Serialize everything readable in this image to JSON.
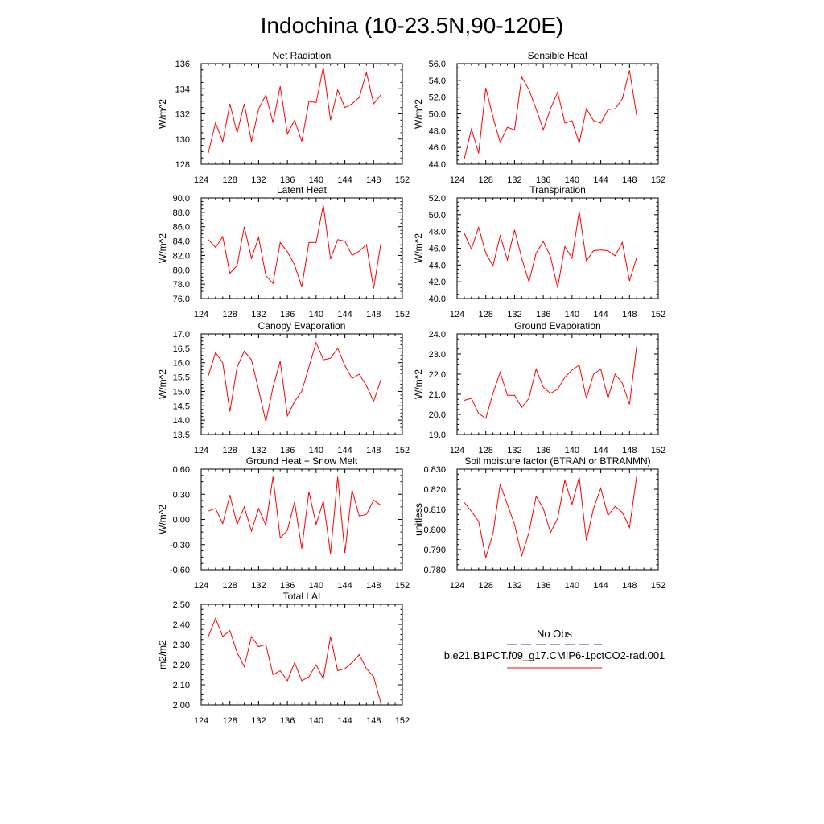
{
  "title": "Indochina (10-23.5N,90-120E)",
  "colors": {
    "model": "#ff0000",
    "obs": "#3a3ab0",
    "axis": "#000000"
  },
  "legend": {
    "obs_label": "No Obs",
    "model_label": "b.e21.B1PCT.f09_g17.CMIP6-1pctCO2-rad.001"
  },
  "chart_data": [
    {
      "type": "line",
      "title": "Net Radiation",
      "ylabel": "W/m^2",
      "xlim": [
        124,
        152
      ],
      "xticks": [
        124,
        128,
        132,
        136,
        140,
        144,
        148,
        152
      ],
      "ylim": [
        128,
        136
      ],
      "yticks": [
        128,
        130,
        132,
        134,
        136
      ],
      "ydecimals": 0,
      "x": [
        125,
        126,
        127,
        128,
        129,
        130,
        131,
        132,
        133,
        134,
        135,
        136,
        137,
        138,
        139,
        140,
        141,
        142,
        143,
        144,
        145,
        146,
        147,
        148,
        149
      ],
      "series": [
        {
          "values": [
            128.9,
            131.3,
            129.8,
            132.8,
            130.5,
            132.8,
            129.8,
            132.4,
            133.5,
            131.3,
            134.2,
            130.4,
            131.5,
            129.8,
            133.0,
            132.9,
            135.7,
            131.5,
            133.9,
            132.5,
            132.8,
            133.3,
            135.3,
            132.8,
            133.5
          ]
        }
      ]
    },
    {
      "type": "line",
      "title": "Sensible Heat",
      "ylabel": "W/m^2",
      "xlim": [
        124,
        152
      ],
      "xticks": [
        124,
        128,
        132,
        136,
        140,
        144,
        148,
        152
      ],
      "ylim": [
        44,
        56
      ],
      "yticks": [
        44,
        46,
        48,
        50,
        52,
        54,
        56
      ],
      "ydecimals": 1,
      "x": [
        125,
        126,
        127,
        128,
        129,
        130,
        131,
        132,
        133,
        134,
        135,
        136,
        137,
        138,
        139,
        140,
        141,
        142,
        143,
        144,
        145,
        146,
        147,
        148,
        149
      ],
      "series": [
        {
          "values": [
            44.6,
            48.2,
            45.3,
            53.1,
            49.6,
            46.6,
            48.4,
            48.1,
            54.4,
            52.9,
            50.6,
            48.1,
            50.6,
            52.6,
            48.9,
            49.2,
            46.5,
            50.6,
            49.2,
            48.9,
            50.5,
            50.6,
            51.8,
            55.2,
            49.8
          ]
        }
      ]
    },
    {
      "type": "line",
      "title": "Latent Heat",
      "ylabel": "W/m^2",
      "xlim": [
        124,
        152
      ],
      "xticks": [
        124,
        128,
        132,
        136,
        140,
        144,
        148,
        152
      ],
      "ylim": [
        76,
        90
      ],
      "yticks": [
        76,
        78,
        80,
        82,
        84,
        86,
        88,
        90
      ],
      "ydecimals": 1,
      "x": [
        125,
        126,
        127,
        128,
        129,
        130,
        131,
        132,
        133,
        134,
        135,
        136,
        137,
        138,
        139,
        140,
        141,
        142,
        143,
        144,
        145,
        146,
        147,
        148,
        149
      ],
      "series": [
        {
          "values": [
            84.2,
            83.1,
            84.6,
            79.5,
            80.6,
            86.0,
            81.6,
            84.5,
            79.2,
            78.1,
            83.8,
            82.5,
            80.7,
            77.6,
            83.8,
            83.8,
            89.0,
            81.5,
            84.2,
            84.0,
            82.0,
            82.6,
            83.5,
            77.4,
            83.6
          ]
        }
      ]
    },
    {
      "type": "line",
      "title": "Transpiration",
      "ylabel": "W/m^2",
      "xlim": [
        124,
        152
      ],
      "xticks": [
        124,
        128,
        132,
        136,
        140,
        144,
        148,
        152
      ],
      "ylim": [
        40,
        52
      ],
      "yticks": [
        40,
        42,
        44,
        46,
        48,
        50,
        52
      ],
      "ydecimals": 1,
      "x": [
        125,
        126,
        127,
        128,
        129,
        130,
        131,
        132,
        133,
        134,
        135,
        136,
        137,
        138,
        139,
        140,
        141,
        142,
        143,
        144,
        145,
        146,
        147,
        148,
        149
      ],
      "series": [
        {
          "values": [
            47.8,
            45.9,
            48.5,
            45.4,
            43.9,
            47.5,
            44.6,
            48.2,
            44.8,
            42.0,
            45.4,
            46.8,
            45.0,
            41.3,
            46.2,
            44.8,
            50.4,
            44.5,
            45.7,
            45.8,
            45.7,
            45.1,
            46.7,
            42.1,
            44.9
          ]
        }
      ]
    },
    {
      "type": "line",
      "title": "Canopy Evaporation",
      "ylabel": "W/m^2",
      "xlim": [
        124,
        152
      ],
      "xticks": [
        124,
        128,
        132,
        136,
        140,
        144,
        148,
        152
      ],
      "ylim": [
        13.5,
        17.0
      ],
      "yticks": [
        13.5,
        14.0,
        14.5,
        15.0,
        15.5,
        16.0,
        16.5,
        17.0
      ],
      "ydecimals": 1,
      "x": [
        125,
        126,
        127,
        128,
        129,
        130,
        131,
        132,
        133,
        134,
        135,
        136,
        137,
        138,
        139,
        140,
        141,
        142,
        143,
        144,
        145,
        146,
        147,
        148,
        149
      ],
      "series": [
        {
          "values": [
            15.55,
            16.35,
            16.0,
            14.3,
            15.85,
            16.4,
            16.1,
            15.05,
            13.95,
            15.15,
            16.05,
            14.15,
            14.65,
            15.0,
            15.85,
            16.7,
            16.1,
            16.15,
            16.5,
            15.9,
            15.45,
            15.6,
            15.2,
            14.65,
            15.4
          ]
        }
      ]
    },
    {
      "type": "line",
      "title": "Ground Evaporation",
      "ylabel": "W/m^2",
      "xlim": [
        124,
        152
      ],
      "xticks": [
        124,
        128,
        132,
        136,
        140,
        144,
        148,
        152
      ],
      "ylim": [
        19,
        24
      ],
      "yticks": [
        19,
        20,
        21,
        22,
        23,
        24
      ],
      "ydecimals": 1,
      "x": [
        125,
        126,
        127,
        128,
        129,
        130,
        131,
        132,
        133,
        134,
        135,
        136,
        137,
        138,
        139,
        140,
        141,
        142,
        143,
        144,
        145,
        146,
        147,
        148,
        149
      ],
      "series": [
        {
          "values": [
            20.7,
            20.8,
            20.05,
            19.8,
            21.05,
            22.1,
            20.95,
            20.95,
            20.35,
            20.8,
            22.25,
            21.35,
            21.05,
            21.25,
            21.85,
            22.2,
            22.45,
            20.8,
            22.0,
            22.25,
            20.8,
            22.0,
            21.55,
            20.5,
            23.4
          ]
        }
      ]
    },
    {
      "type": "line",
      "title": "Ground Heat + Snow Melt",
      "ylabel": "W/m^2",
      "xlim": [
        124,
        152
      ],
      "xticks": [
        124,
        128,
        132,
        136,
        140,
        144,
        148,
        152
      ],
      "ylim": [
        -0.6,
        0.6
      ],
      "yticks": [
        -0.6,
        -0.3,
        0.0,
        0.3,
        0.6
      ],
      "ydecimals": 2,
      "x": [
        125,
        126,
        127,
        128,
        129,
        130,
        131,
        132,
        133,
        134,
        135,
        136,
        137,
        138,
        139,
        140,
        141,
        142,
        143,
        144,
        145,
        146,
        147,
        148,
        149
      ],
      "series": [
        {
          "values": [
            0.1,
            0.13,
            -0.05,
            0.29,
            -0.06,
            0.15,
            -0.14,
            0.13,
            -0.07,
            0.51,
            -0.22,
            -0.13,
            0.21,
            -0.35,
            0.33,
            -0.06,
            0.22,
            -0.41,
            0.51,
            -0.4,
            0.35,
            0.04,
            0.06,
            0.23,
            0.17
          ]
        }
      ]
    },
    {
      "type": "line",
      "title": "Soil moisture factor (BTRAN or BTRANMN)",
      "ylabel": "unitless",
      "xlim": [
        124,
        152
      ],
      "xticks": [
        124,
        128,
        132,
        136,
        140,
        144,
        148,
        152
      ],
      "ylim": [
        0.78,
        0.83
      ],
      "yticks": [
        0.78,
        0.79,
        0.8,
        0.81,
        0.82,
        0.83
      ],
      "ydecimals": 3,
      "x": [
        125,
        126,
        127,
        128,
        129,
        130,
        131,
        132,
        133,
        134,
        135,
        136,
        137,
        138,
        139,
        140,
        141,
        142,
        143,
        144,
        145,
        146,
        147,
        148,
        149
      ],
      "series": [
        {
          "values": [
            0.8135,
            0.809,
            0.804,
            0.786,
            0.798,
            0.8225,
            0.8125,
            0.8025,
            0.787,
            0.7985,
            0.8165,
            0.8105,
            0.7985,
            0.8055,
            0.8245,
            0.8125,
            0.826,
            0.7945,
            0.8105,
            0.8205,
            0.807,
            0.8115,
            0.8085,
            0.801,
            0.8265
          ]
        }
      ]
    },
    {
      "type": "line",
      "title": "Total LAI",
      "ylabel": "m2/m2",
      "xlim": [
        124,
        152
      ],
      "xticks": [
        124,
        128,
        132,
        136,
        140,
        144,
        148,
        152
      ],
      "ylim": [
        2.0,
        2.5
      ],
      "yticks": [
        2.0,
        2.1,
        2.2,
        2.3,
        2.4,
        2.5
      ],
      "ydecimals": 2,
      "x": [
        125,
        126,
        127,
        128,
        129,
        130,
        131,
        132,
        133,
        134,
        135,
        136,
        137,
        138,
        139,
        140,
        141,
        142,
        143,
        144,
        145,
        146,
        147,
        148,
        149
      ],
      "series": [
        {
          "values": [
            2.34,
            2.43,
            2.34,
            2.37,
            2.26,
            2.19,
            2.34,
            2.29,
            2.3,
            2.15,
            2.17,
            2.12,
            2.21,
            2.12,
            2.14,
            2.2,
            2.13,
            2.34,
            2.17,
            2.18,
            2.21,
            2.25,
            2.18,
            2.14,
            2.01
          ]
        }
      ]
    }
  ]
}
